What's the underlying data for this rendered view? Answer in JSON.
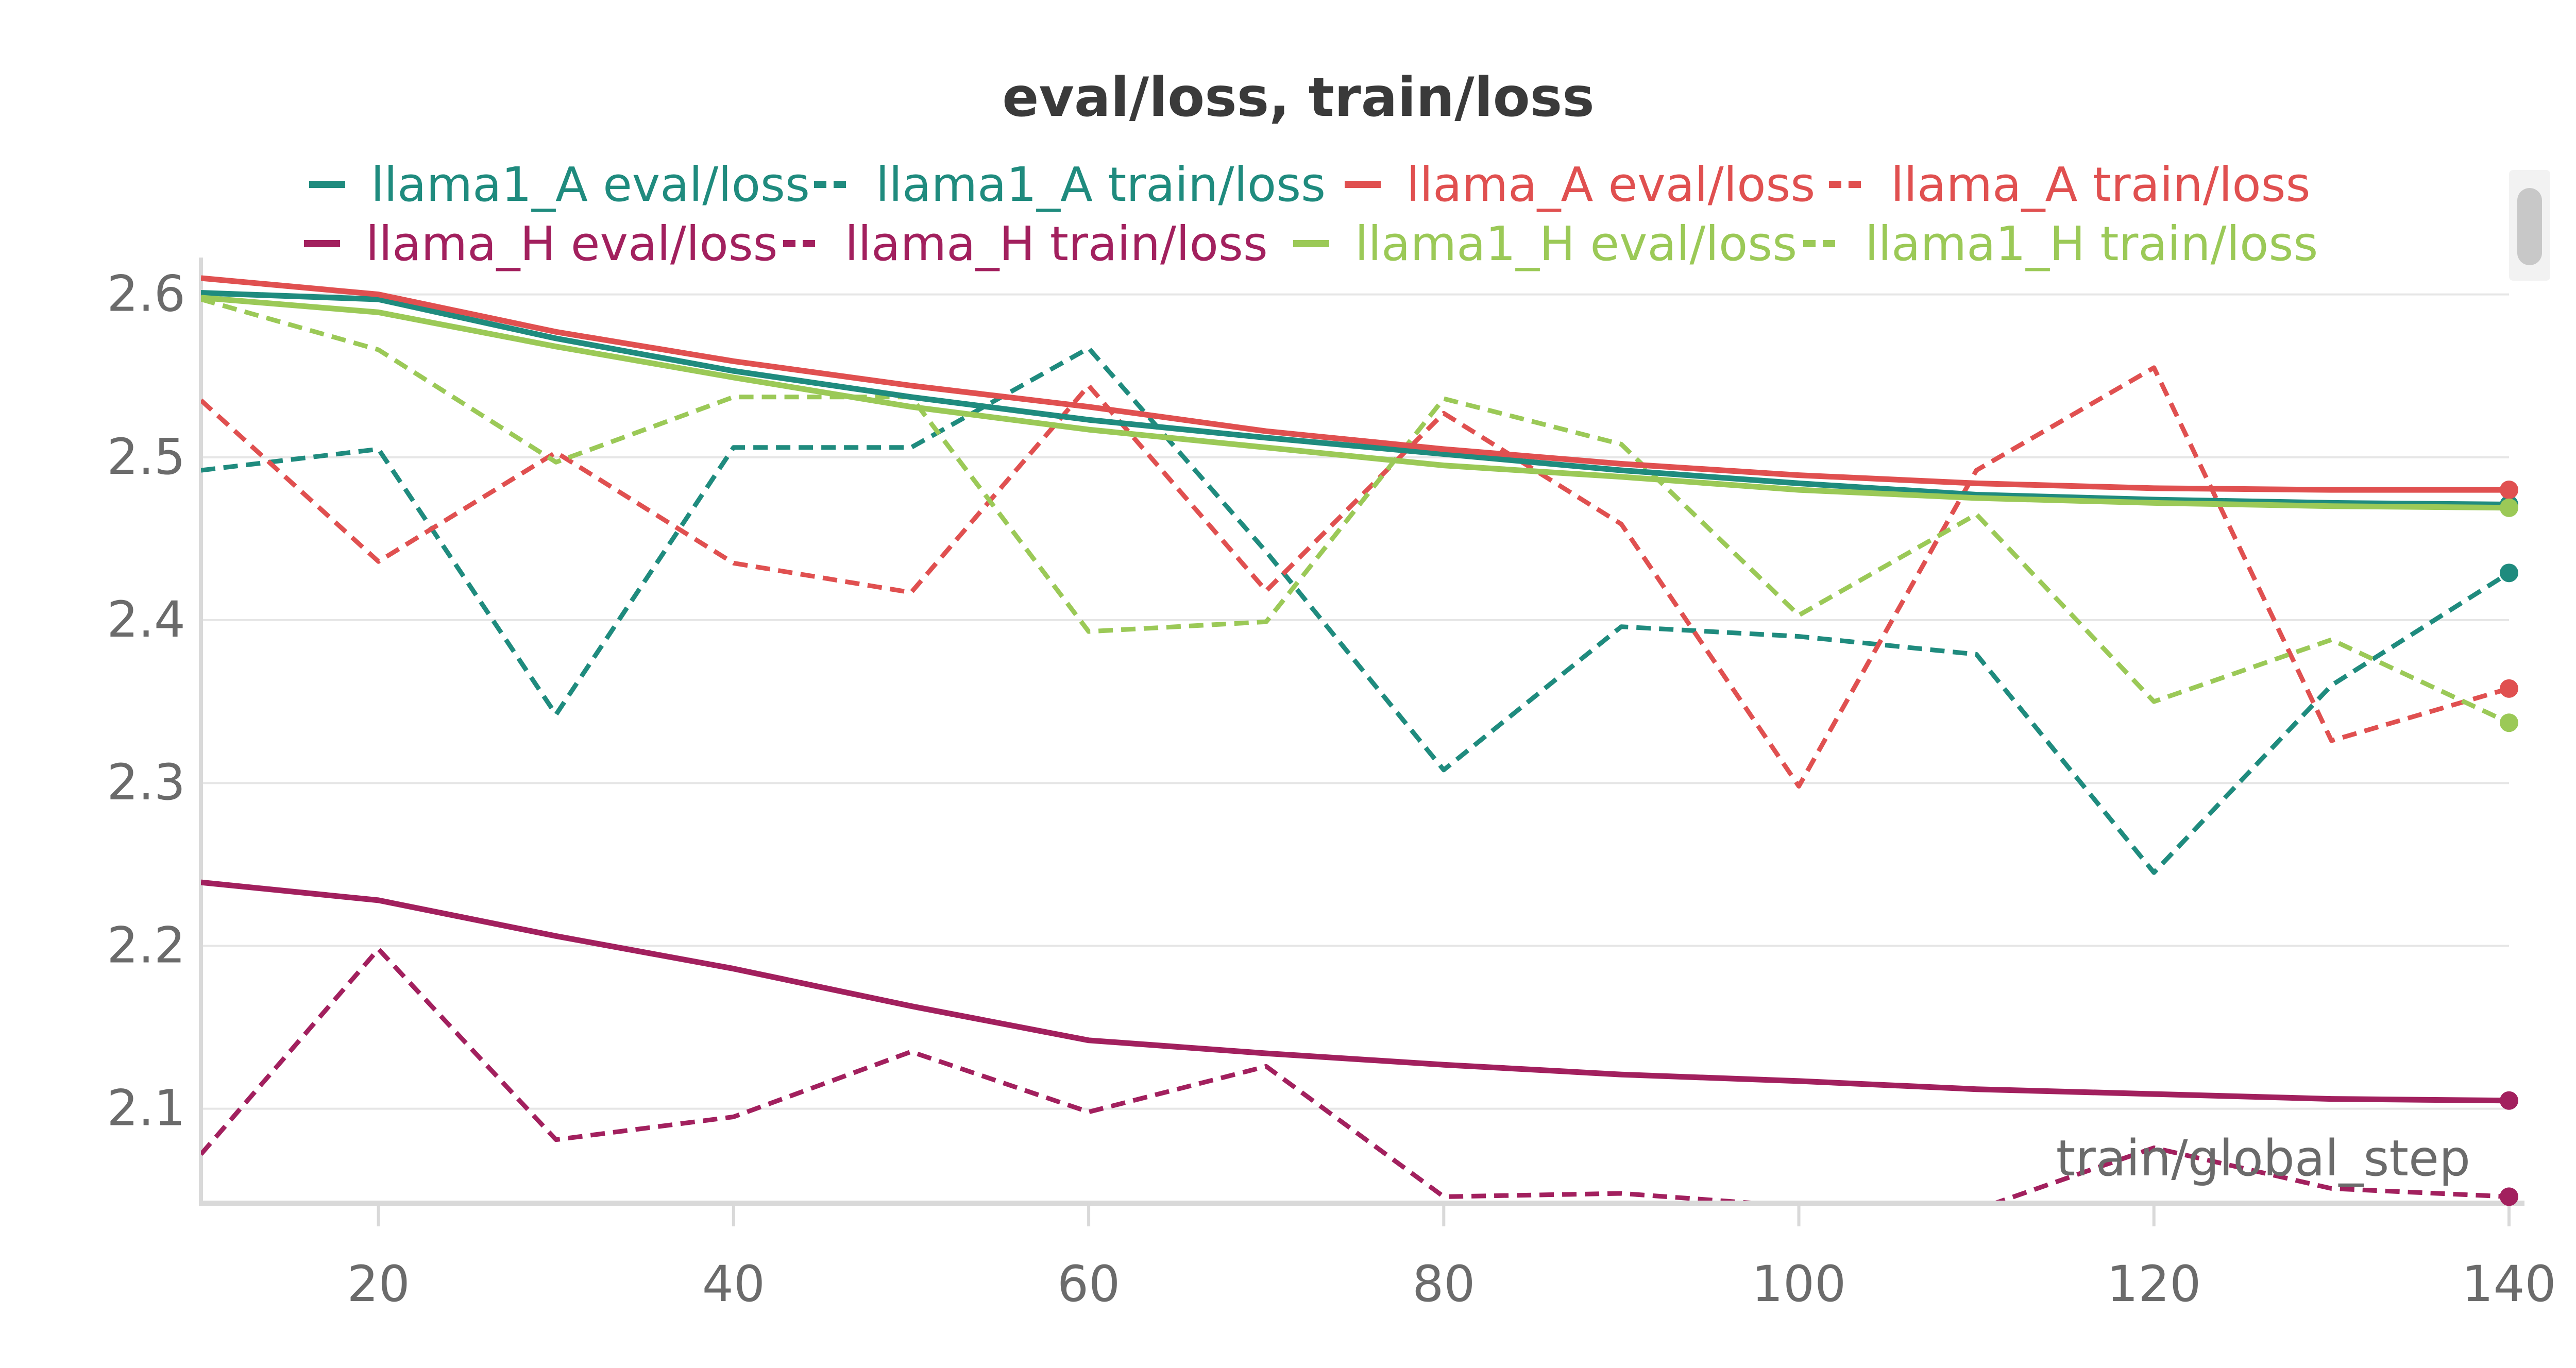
{
  "chart_data": {
    "type": "line",
    "title": "eval/loss, train/loss",
    "xlabel": "train/global_step",
    "ylabel": "",
    "xlim": [
      10,
      140
    ],
    "ylim": [
      2.042,
      2.61
    ],
    "xticks": [
      20,
      40,
      60,
      80,
      100,
      120,
      140
    ],
    "yticks": [
      2.1,
      2.2,
      2.3,
      2.4,
      2.5,
      2.6
    ],
    "grid": true,
    "legend_position": "top",
    "x": [
      10,
      20,
      30,
      40,
      50,
      60,
      70,
      80,
      90,
      100,
      110,
      120,
      130,
      140
    ],
    "series": [
      {
        "name": "llama1_A eval/loss",
        "color": "#1f8b7e",
        "style": "solid",
        "values": [
          2.601,
          2.597,
          2.573,
          2.553,
          2.537,
          2.523,
          2.512,
          2.502,
          2.492,
          2.484,
          2.477,
          2.474,
          2.472,
          2.471
        ]
      },
      {
        "name": "llama1_A train/loss",
        "color": "#1f8b7e",
        "style": "dashed",
        "values": [
          2.492,
          2.505,
          2.342,
          2.506,
          2.506,
          2.567,
          2.442,
          2.308,
          2.396,
          2.39,
          2.379,
          2.245,
          2.36,
          2.429
        ]
      },
      {
        "name": "llama_A eval/loss",
        "color": "#e05050",
        "style": "solid",
        "values": [
          2.61,
          2.6,
          2.577,
          2.559,
          2.544,
          2.531,
          2.516,
          2.505,
          2.496,
          2.489,
          2.484,
          2.481,
          2.48,
          2.48
        ]
      },
      {
        "name": "llama_A train/loss",
        "color": "#e05050",
        "style": "dashed",
        "values": [
          2.535,
          2.436,
          2.503,
          2.435,
          2.417,
          2.544,
          2.418,
          2.527,
          2.459,
          2.298,
          2.492,
          2.555,
          2.326,
          2.358
        ]
      },
      {
        "name": "llama_H eval/loss",
        "color": "#a2205e",
        "style": "solid",
        "values": [
          2.239,
          2.228,
          2.206,
          2.186,
          2.163,
          2.142,
          2.134,
          2.127,
          2.121,
          2.117,
          2.112,
          2.109,
          2.106,
          2.105
        ]
      },
      {
        "name": "llama_H train/loss",
        "color": "#a2205e",
        "style": "dashed",
        "values": [
          2.072,
          2.198,
          2.081,
          2.095,
          2.135,
          2.098,
          2.126,
          2.046,
          2.048,
          2.04,
          2.038,
          2.076,
          2.051,
          2.046
        ]
      },
      {
        "name": "llama1_H eval/loss",
        "color": "#9bc957",
        "style": "solid",
        "values": [
          2.598,
          2.589,
          2.568,
          2.549,
          2.531,
          2.517,
          2.506,
          2.495,
          2.488,
          2.48,
          2.475,
          2.472,
          2.47,
          2.469
        ]
      },
      {
        "name": "llama1_H train/loss",
        "color": "#9bc957",
        "style": "dashed",
        "values": [
          2.597,
          2.566,
          2.497,
          2.537,
          2.537,
          2.393,
          2.399,
          2.536,
          2.508,
          2.403,
          2.465,
          2.35,
          2.388,
          2.337
        ]
      }
    ]
  }
}
